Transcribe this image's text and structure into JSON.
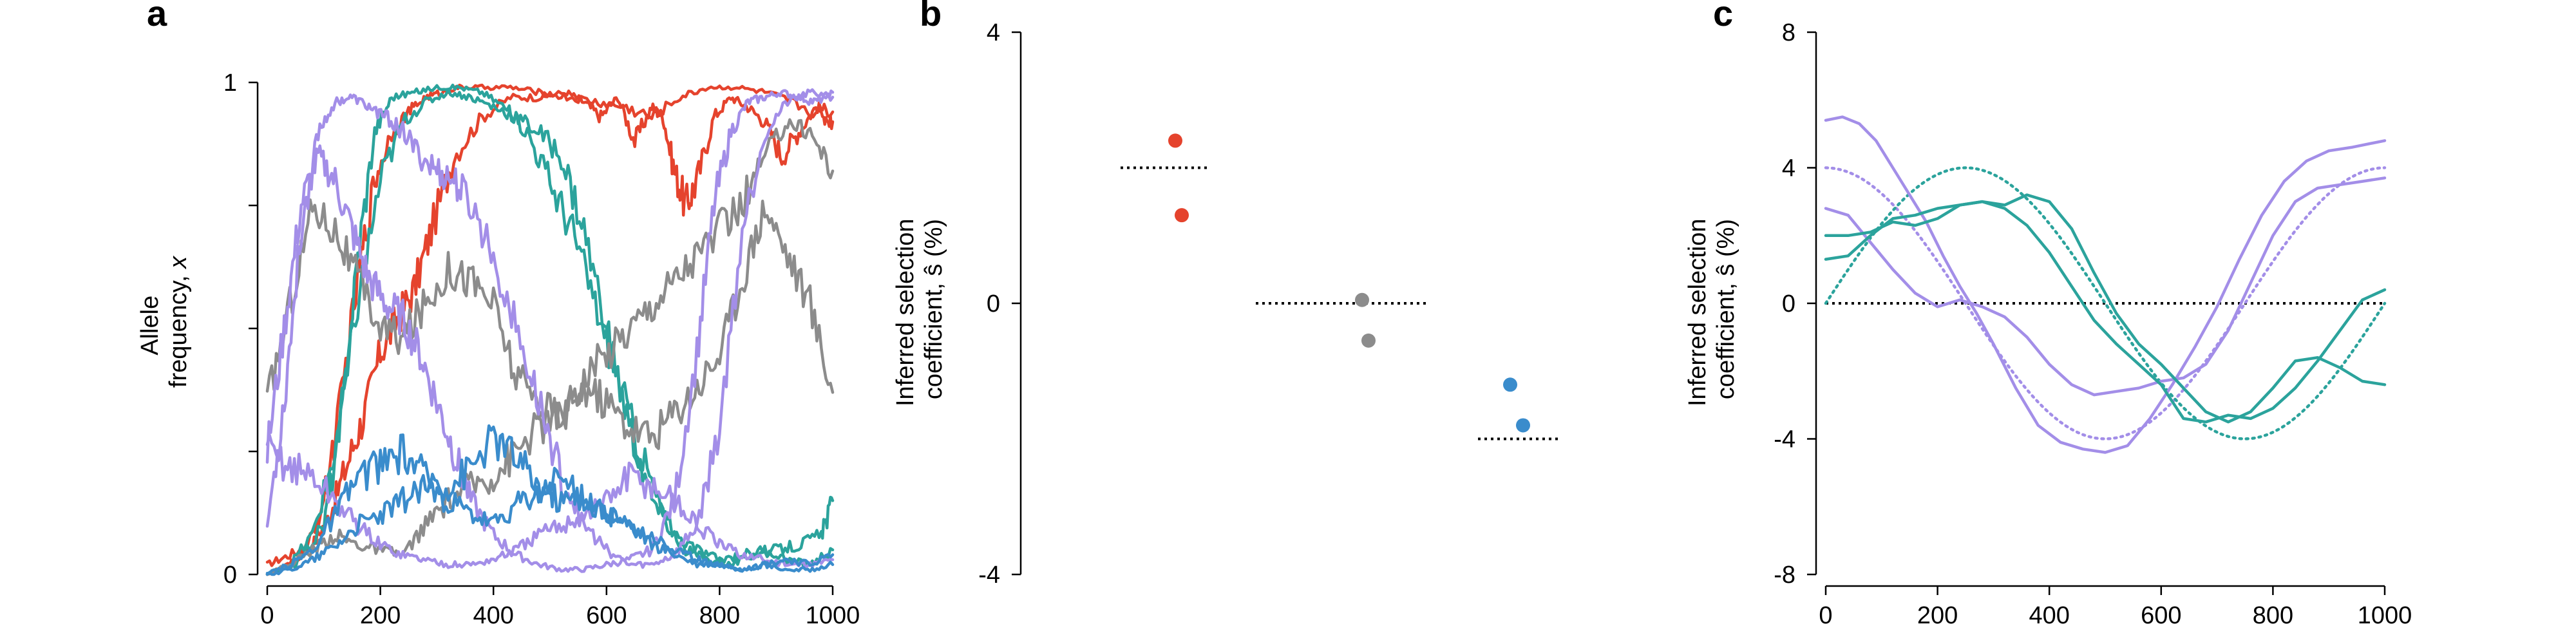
{
  "colors": {
    "red": "#e5432d",
    "teal": "#2ba39c",
    "gray": "#8c8c8c",
    "purple": "#a38ee8",
    "blue": "#3a8ccc",
    "black": "#000000"
  },
  "chart_data": [
    {
      "panel": "a",
      "type": "line",
      "title": "",
      "xlabel": "",
      "ylabel": "Allele frequency, x",
      "ylabel_lines": [
        "Allele",
        "frequency, "
      ],
      "ylabel_var": "x",
      "xlim": [
        0,
        1000
      ],
      "ylim": [
        0,
        1
      ],
      "xticks": [
        0,
        200,
        400,
        600,
        800,
        1000
      ],
      "yticks": [
        0,
        1
      ],
      "ytick_labels": [
        "0",
        "1"
      ],
      "ticks_minor_y": [
        0,
        0.25,
        0.5,
        0.75,
        1
      ],
      "series": [
        {
          "color": "red",
          "x": [
            0,
            40,
            80,
            110,
            140,
            170,
            200,
            230,
            260,
            290,
            330,
            380,
            430,
            480,
            530,
            560,
            590,
            620,
            650,
            680,
            700,
            720,
            740,
            760,
            790,
            820,
            850,
            880,
            910,
            940,
            970,
            1000
          ],
          "y": [
            0.02,
            0.04,
            0.06,
            0.12,
            0.22,
            0.32,
            0.45,
            0.52,
            0.58,
            0.7,
            0.85,
            0.93,
            0.97,
            0.97,
            0.98,
            0.96,
            0.93,
            0.97,
            0.88,
            0.95,
            0.93,
            0.82,
            0.75,
            0.8,
            0.93,
            0.97,
            0.95,
            0.92,
            0.85,
            0.9,
            0.95,
            0.94
          ]
        },
        {
          "color": "red",
          "x": [
            0,
            40,
            70,
            100,
            130,
            160,
            190,
            220,
            250,
            280,
            310,
            340,
            380,
            430,
            480,
            530,
            580,
            630,
            680,
            730,
            780,
            830,
            880,
            930,
            980,
            1000
          ],
          "y": [
            0.0,
            0.02,
            0.05,
            0.15,
            0.35,
            0.6,
            0.8,
            0.9,
            0.94,
            0.97,
            0.98,
            0.99,
            0.99,
            0.99,
            0.98,
            0.97,
            0.96,
            0.95,
            0.93,
            0.97,
            0.99,
            0.99,
            0.98,
            0.96,
            0.93,
            0.92
          ]
        },
        {
          "color": "teal",
          "x": [
            0,
            50,
            100,
            130,
            160,
            190,
            220,
            260,
            300,
            340,
            380,
            420,
            460,
            500,
            540,
            580,
            620,
            660,
            700,
            740,
            780,
            820,
            860,
            900,
            940,
            980,
            1000
          ],
          "y": [
            0.0,
            0.02,
            0.1,
            0.3,
            0.65,
            0.9,
            0.97,
            0.98,
            0.99,
            0.99,
            0.98,
            0.95,
            0.9,
            0.8,
            0.7,
            0.55,
            0.4,
            0.25,
            0.12,
            0.05,
            0.03,
            0.02,
            0.04,
            0.05,
            0.06,
            0.08,
            0.15
          ]
        },
        {
          "color": "teal",
          "x": [
            0,
            40,
            80,
            120,
            160,
            200,
            240,
            280,
            320,
            360,
            400,
            440,
            480,
            520,
            560,
            600,
            640,
            680,
            720,
            760,
            800,
            840,
            880,
            920,
            960,
            1000
          ],
          "y": [
            0.0,
            0.02,
            0.08,
            0.25,
            0.55,
            0.8,
            0.92,
            0.96,
            0.98,
            0.97,
            0.95,
            0.93,
            0.9,
            0.85,
            0.7,
            0.5,
            0.3,
            0.15,
            0.08,
            0.05,
            0.03,
            0.04,
            0.05,
            0.03,
            0.02,
            0.05
          ]
        },
        {
          "color": "gray",
          "x": [
            0,
            40,
            80,
            120,
            160,
            200,
            240,
            280,
            320,
            360,
            400,
            440,
            480,
            520,
            560,
            600,
            640,
            680,
            720,
            760,
            800,
            840,
            880,
            920,
            960,
            1000
          ],
          "y": [
            0.35,
            0.55,
            0.75,
            0.7,
            0.6,
            0.5,
            0.48,
            0.55,
            0.62,
            0.6,
            0.55,
            0.4,
            0.35,
            0.32,
            0.4,
            0.45,
            0.5,
            0.55,
            0.6,
            0.65,
            0.7,
            0.75,
            0.85,
            0.92,
            0.9,
            0.82
          ]
        },
        {
          "color": "gray",
          "x": [
            0,
            40,
            80,
            120,
            160,
            200,
            240,
            280,
            320,
            360,
            400,
            440,
            480,
            520,
            560,
            600,
            640,
            680,
            720,
            760,
            800,
            840,
            880,
            920,
            960,
            1000
          ],
          "y": [
            0.0,
            0.02,
            0.05,
            0.08,
            0.06,
            0.05,
            0.04,
            0.1,
            0.15,
            0.18,
            0.2,
            0.25,
            0.3,
            0.32,
            0.38,
            0.35,
            0.3,
            0.28,
            0.33,
            0.38,
            0.45,
            0.6,
            0.75,
            0.65,
            0.55,
            0.37
          ]
        },
        {
          "color": "purple",
          "x": [
            0,
            30,
            60,
            90,
            120,
            150,
            180,
            210,
            240,
            270,
            300,
            330,
            360,
            400,
            440,
            480,
            520,
            560,
            600,
            640,
            680,
            720,
            760,
            790,
            820,
            850,
            880,
            910,
            940,
            970,
            1000
          ],
          "y": [
            0.25,
            0.5,
            0.75,
            0.85,
            0.8,
            0.7,
            0.6,
            0.55,
            0.52,
            0.45,
            0.35,
            0.25,
            0.15,
            0.08,
            0.04,
            0.02,
            0.01,
            0.01,
            0.02,
            0.03,
            0.05,
            0.15,
            0.45,
            0.75,
            0.9,
            0.96,
            0.97,
            0.98,
            0.97,
            0.96,
            0.98
          ]
        },
        {
          "color": "purple",
          "x": [
            0,
            30,
            60,
            90,
            120,
            150,
            180,
            210,
            240,
            270,
            300,
            330,
            360,
            400,
            440,
            480,
            520,
            560,
            600,
            640,
            680,
            720,
            760,
            800,
            840,
            880,
            920,
            960,
            1000
          ],
          "y": [
            0.1,
            0.35,
            0.7,
            0.9,
            0.96,
            0.97,
            0.95,
            0.93,
            0.9,
            0.85,
            0.82,
            0.8,
            0.75,
            0.65,
            0.5,
            0.35,
            0.2,
            0.1,
            0.05,
            0.02,
            0.02,
            0.04,
            0.1,
            0.3,
            0.7,
            0.9,
            0.96,
            0.98,
            0.97
          ]
        },
        {
          "color": "purple",
          "x": [
            0,
            40,
            80,
            120,
            160,
            200,
            240,
            280,
            320,
            360,
            400,
            440,
            480,
            520,
            560,
            600,
            640,
            680,
            720,
            760,
            800,
            840,
            880,
            920,
            960,
            1000
          ],
          "y": [
            0.25,
            0.22,
            0.2,
            0.15,
            0.1,
            0.06,
            0.04,
            0.03,
            0.02,
            0.02,
            0.03,
            0.05,
            0.08,
            0.1,
            0.12,
            0.15,
            0.2,
            0.18,
            0.15,
            0.1,
            0.06,
            0.04,
            0.03,
            0.02,
            0.02,
            0.03
          ]
        },
        {
          "color": "blue",
          "x": [
            0,
            40,
            80,
            120,
            160,
            200,
            240,
            280,
            320,
            360,
            400,
            440,
            480,
            520,
            560,
            600,
            640,
            680,
            720,
            760,
            800,
            840,
            880,
            920,
            960,
            1000
          ],
          "y": [
            0.0,
            0.02,
            0.05,
            0.12,
            0.2,
            0.22,
            0.25,
            0.2,
            0.18,
            0.22,
            0.28,
            0.24,
            0.18,
            0.15,
            0.16,
            0.12,
            0.1,
            0.08,
            0.05,
            0.03,
            0.02,
            0.01,
            0.02,
            0.01,
            0.01,
            0.02
          ]
        },
        {
          "color": "blue",
          "x": [
            0,
            40,
            80,
            120,
            160,
            200,
            240,
            280,
            320,
            360,
            400,
            440,
            480,
            520,
            560,
            600,
            640,
            680,
            720,
            760,
            800,
            840,
            880,
            920,
            960,
            1000
          ],
          "y": [
            0.0,
            0.01,
            0.03,
            0.06,
            0.1,
            0.12,
            0.15,
            0.18,
            0.15,
            0.12,
            0.1,
            0.14,
            0.16,
            0.2,
            0.15,
            0.12,
            0.1,
            0.06,
            0.04,
            0.02,
            0.02,
            0.01,
            0.02,
            0.03,
            0.02,
            0.04
          ]
        }
      ]
    },
    {
      "panel": "b",
      "type": "scatter",
      "title": "",
      "xlabel": "",
      "ylabel": "Inferred selection coefficient, ŝ (%)",
      "ylabel_lines": [
        "Inferred selection",
        "coefficient, ŝ (%)"
      ],
      "ylim": [
        -4,
        4
      ],
      "yticks": [
        -4,
        0,
        4
      ],
      "ytick_labels": [
        "-4",
        "0",
        "4"
      ],
      "groups": [
        {
          "color": "red",
          "true_s": 2.0,
          "points": [
            2.4,
            1.3
          ]
        },
        {
          "color": "gray",
          "true_s": 0.0,
          "points": [
            0.05,
            -0.55
          ]
        },
        {
          "color": "blue",
          "true_s": -2.0,
          "points": [
            -1.2,
            -1.8
          ]
        }
      ]
    },
    {
      "panel": "c",
      "type": "line",
      "title": "",
      "xlabel": "",
      "ylabel": "Inferred selection coefficient, ŝ (%)",
      "ylabel_lines": [
        "Inferred selection",
        "coefficient, ŝ (%)"
      ],
      "xlim": [
        0,
        1000
      ],
      "ylim": [
        -8,
        8
      ],
      "xticks": [
        0,
        200,
        400,
        600,
        800,
        1000
      ],
      "yticks": [
        -8,
        -4,
        0,
        4,
        8
      ],
      "ytick_labels": [
        "-8",
        "-4",
        "0",
        "4",
        "8"
      ],
      "true_curves": [
        {
          "color": "purple",
          "shape": "cos",
          "amplitude": 4,
          "period": 1000
        },
        {
          "color": "teal",
          "shape": "sin",
          "amplitude": 4,
          "period": 1000
        }
      ],
      "series": [
        {
          "color": "purple",
          "x": [
            0,
            30,
            60,
            90,
            120,
            150,
            180,
            210,
            240,
            270,
            300,
            340,
            380,
            420,
            460,
            500,
            540,
            580,
            620,
            660,
            700,
            740,
            780,
            820,
            860,
            900,
            940,
            1000
          ],
          "y": [
            5.4,
            5.5,
            5.3,
            4.8,
            4.0,
            3.2,
            2.4,
            1.4,
            0.5,
            -0.3,
            -1.2,
            -2.5,
            -3.6,
            -4.1,
            -4.3,
            -4.4,
            -4.2,
            -3.4,
            -2.4,
            -1.3,
            -0.1,
            1.3,
            2.6,
            3.6,
            4.2,
            4.5,
            4.6,
            4.8
          ]
        },
        {
          "color": "purple",
          "x": [
            0,
            40,
            80,
            120,
            160,
            200,
            240,
            280,
            320,
            360,
            400,
            440,
            480,
            520,
            560,
            600,
            640,
            680,
            720,
            760,
            800,
            840,
            880,
            920,
            960,
            1000
          ],
          "y": [
            2.8,
            2.6,
            1.8,
            1.0,
            0.3,
            -0.1,
            0.1,
            -0.1,
            -0.4,
            -1.0,
            -1.8,
            -2.4,
            -2.7,
            -2.6,
            -2.5,
            -2.3,
            -2.2,
            -1.8,
            -0.8,
            0.6,
            2.0,
            3.0,
            3.4,
            3.5,
            3.6,
            3.7
          ]
        },
        {
          "color": "teal",
          "x": [
            0,
            40,
            80,
            120,
            160,
            200,
            240,
            280,
            320,
            360,
            400,
            440,
            480,
            520,
            560,
            600,
            640,
            680,
            720,
            760,
            800,
            840,
            880,
            920,
            960,
            1000
          ],
          "y": [
            1.3,
            1.4,
            2.0,
            2.5,
            2.6,
            2.8,
            2.9,
            3.0,
            2.8,
            2.3,
            1.5,
            0.5,
            -0.5,
            -1.2,
            -1.8,
            -2.4,
            -3.4,
            -3.5,
            -3.3,
            -3.4,
            -3.1,
            -2.5,
            -1.7,
            -0.8,
            0.1,
            0.4
          ]
        },
        {
          "color": "teal",
          "x": [
            0,
            40,
            80,
            120,
            160,
            200,
            240,
            280,
            320,
            360,
            400,
            440,
            480,
            520,
            560,
            600,
            640,
            680,
            720,
            760,
            800,
            840,
            880,
            920,
            960,
            1000
          ],
          "y": [
            2.0,
            2.0,
            2.1,
            2.4,
            2.3,
            2.5,
            2.9,
            3.0,
            2.9,
            3.2,
            3.0,
            2.2,
            0.9,
            -0.3,
            -1.2,
            -1.8,
            -2.5,
            -3.2,
            -3.5,
            -3.2,
            -2.5,
            -1.7,
            -1.6,
            -1.9,
            -2.3,
            -2.4
          ]
        }
      ]
    }
  ]
}
